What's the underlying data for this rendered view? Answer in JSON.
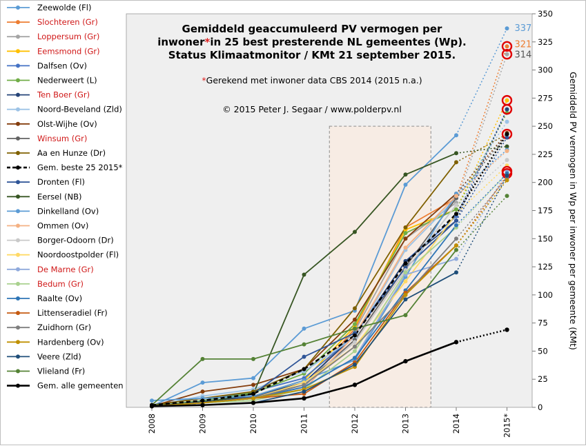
{
  "chart_data": {
    "type": "line",
    "title_lines": [
      "Gemiddeld  geaccumuleerd PV vermogen per",
      "inwoner",
      "in 25 best presterende NL gemeentes (Wp).",
      "Status Klimaatmonitor  / KMt  21 september 2015."
    ],
    "title_star": "*",
    "note_star": "*",
    "note": "Gerekend met inwoner data CBS 2014 (2015 n.a.)",
    "copyright": "© 2015 Peter J. Segaar / www.polderpv.nl",
    "ylabel": "Gemiddeld  PV vermogen  in Wp per inwoner per gemeente (KMt)",
    "categories": [
      "2008",
      "2009",
      "2010",
      "2011",
      "2012",
      "2013",
      "2014",
      "2015*"
    ],
    "yticks": [
      "0",
      "25",
      "50",
      "75",
      "100",
      "125",
      "150",
      "175",
      "200",
      "225",
      "250",
      "275",
      "300",
      "325",
      "350"
    ],
    "ylim": [
      0,
      350
    ],
    "grid": false,
    "highlight_band": [
      "2012",
      "2013"
    ],
    "legend_position": "left",
    "end_labels": [
      "337",
      "321",
      "314"
    ],
    "series": [
      {
        "name": "Zeewolde (Fl)",
        "color": "#5b9bd5",
        "red": false,
        "values": [
          1,
          22,
          26,
          70,
          86,
          198,
          242,
          337
        ]
      },
      {
        "name": "Slochteren (Gr)",
        "color": "#ed7d31",
        "red": true,
        "values": [
          1,
          4,
          8,
          18,
          70,
          160,
          186,
          321
        ]
      },
      {
        "name": "Loppersum (Gr)",
        "color": "#a5a5a5",
        "red": true,
        "values": [
          1,
          4,
          8,
          18,
          68,
          150,
          182,
          314
        ]
      },
      {
        "name": "Eemsmond (Gr)",
        "color": "#ffc000",
        "red": true,
        "values": [
          1,
          4,
          10,
          24,
          72,
          158,
          176,
          273
        ]
      },
      {
        "name": "Dalfsen (Ov)",
        "color": "#4472c4",
        "red": false,
        "values": [
          1,
          6,
          14,
          26,
          64,
          130,
          170,
          265
        ]
      },
      {
        "name": "Nederweert (L)",
        "color": "#70ad47",
        "red": false,
        "values": [
          1,
          6,
          13,
          30,
          74,
          155,
          176,
          262
        ]
      },
      {
        "name": "Ten Boer (Gr)",
        "color": "#264478",
        "red": true,
        "values": [
          1,
          5,
          10,
          22,
          64,
          130,
          166,
          265
        ]
      },
      {
        "name": "Noord-Beveland (Zld)",
        "color": "#9dc3e6",
        "red": false,
        "values": [
          1,
          10,
          16,
          32,
          62,
          140,
          186,
          254
        ]
      },
      {
        "name": "Olst-Wijhe (Ov)",
        "color": "#843c0c",
        "red": false,
        "values": [
          1,
          14,
          20,
          34,
          78,
          150,
          190,
          244
        ]
      },
      {
        "name": "Winsum (Gr)",
        "color": "#636363",
        "red": true,
        "values": [
          1,
          4,
          9,
          20,
          60,
          125,
          186,
          243
        ]
      },
      {
        "name": "Aa en Hunze (Dr)",
        "color": "#7f6000",
        "red": false,
        "values": [
          2,
          8,
          14,
          34,
          88,
          160,
          218,
          243
        ]
      },
      {
        "name": "Gem. beste 25 2015*",
        "color": "#000000",
        "red": false,
        "dashed": true,
        "values": [
          2,
          6,
          12,
          34,
          64,
          128,
          172,
          243
        ]
      },
      {
        "name": "Dronten (Fl)",
        "color": "#2f5597",
        "red": false,
        "values": [
          1,
          4,
          12,
          45,
          66,
          124,
          166,
          240
        ]
      },
      {
        "name": "Eersel (NB)",
        "color": "#375623",
        "red": false,
        "values": [
          2,
          4,
          12,
          118,
          156,
          207,
          226,
          232
        ]
      },
      {
        "name": "Dinkelland (Ov)",
        "color": "#5b9bd5",
        "red": false,
        "values": [
          6,
          8,
          10,
          24,
          42,
          116,
          190,
          229
        ]
      },
      {
        "name": "Ommen (Ov)",
        "color": "#f4b183",
        "red": false,
        "values": [
          1,
          4,
          8,
          16,
          64,
          142,
          188,
          228
        ]
      },
      {
        "name": "Borger-Odoorn (Dr)",
        "color": "#c9c9c9",
        "red": false,
        "values": [
          1,
          4,
          8,
          20,
          58,
          122,
          180,
          220
        ]
      },
      {
        "name": "Noordoostpolder (Fl)",
        "color": "#ffd966",
        "red": false,
        "values": [
          1,
          4,
          8,
          22,
          54,
          112,
          172,
          215
        ]
      },
      {
        "name": "De Marne (Gr)",
        "color": "#8faadc",
        "red": true,
        "values": [
          1,
          4,
          8,
          18,
          44,
          118,
          132,
          210
        ]
      },
      {
        "name": "Bedum (Gr)",
        "color": "#a9d18e",
        "red": true,
        "values": [
          1,
          4,
          6,
          16,
          50,
          120,
          160,
          208
        ]
      },
      {
        "name": "Raalte (Ov)",
        "color": "#2e75b6",
        "red": false,
        "values": [
          1,
          4,
          8,
          18,
          44,
          104,
          162,
          208
        ]
      },
      {
        "name": "Littenseradiel (Fr)",
        "color": "#c55a11",
        "red": false,
        "values": [
          1,
          4,
          8,
          12,
          40,
          102,
          144,
          206
        ]
      },
      {
        "name": "Zuidhorn (Gr)",
        "color": "#7f7f7f",
        "red": false,
        "values": [
          1,
          4,
          8,
          20,
          54,
          100,
          150,
          204
        ]
      },
      {
        "name": "Hardenberg (Ov)",
        "color": "#bf9000",
        "red": false,
        "values": [
          1,
          4,
          8,
          16,
          36,
          100,
          144,
          202
        ]
      },
      {
        "name": "Veere (Zld)",
        "color": "#1f4e79",
        "red": false,
        "values": [
          1,
          2,
          4,
          14,
          38,
          96,
          120,
          206
        ]
      },
      {
        "name": "Vlieland (Fr)",
        "color": "#548235",
        "red": false,
        "values": [
          2,
          43,
          43,
          56,
          70,
          82,
          140,
          188
        ]
      },
      {
        "name": "Gem. alle gemeenten",
        "color": "#000000",
        "red": false,
        "thick": true,
        "values": [
          1,
          2,
          4,
          8,
          20,
          41,
          58,
          69
        ]
      }
    ]
  }
}
